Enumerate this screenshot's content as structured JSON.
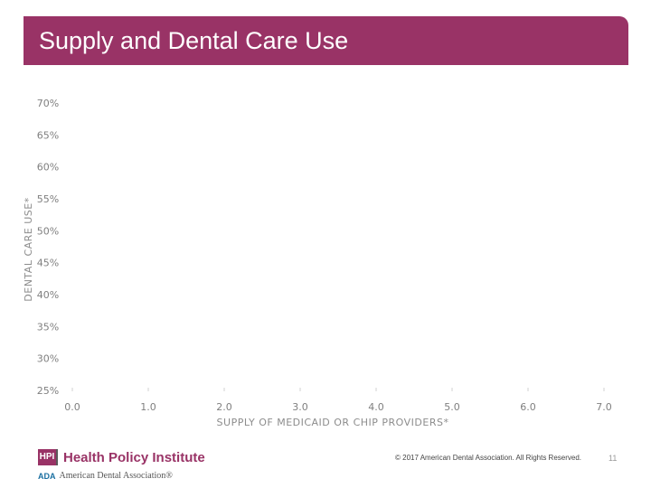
{
  "slide": {
    "title": "Supply and Dental Care Use",
    "copyright": "© 2017 American Dental Association. All Rights Reserved.",
    "page_number": "11"
  },
  "footer": {
    "hpi_mark": "HPI",
    "hpi_name": "Health Policy Institute",
    "ada_mark": "ADA",
    "ada_name": "American Dental Association®"
  },
  "colors": {
    "title_bar": "#993366",
    "axis_text": "#7f7f7f"
  },
  "chart_data": {
    "type": "scatter",
    "title": "",
    "xlabel": "SUPPLY OF MEDICAID OR CHIP PROVIDERS*",
    "ylabel": "DENTAL CARE USE*",
    "xlim": [
      0,
      7
    ],
    "ylim": [
      25,
      70
    ],
    "x_ticks": [
      0,
      1,
      2,
      3,
      4,
      5,
      6,
      7
    ],
    "x_tick_labels": [
      "0.0",
      "1.0",
      "2.0",
      "3.0",
      "4.0",
      "5.0",
      "6.0",
      "7.0"
    ],
    "y_ticks": [
      25,
      30,
      35,
      40,
      45,
      50,
      55,
      60,
      65,
      70
    ],
    "y_tick_labels": [
      "25%",
      "30%",
      "35%",
      "40%",
      "45%",
      "50%",
      "55%",
      "60%",
      "65%",
      "70%"
    ],
    "grid": false,
    "points": []
  }
}
